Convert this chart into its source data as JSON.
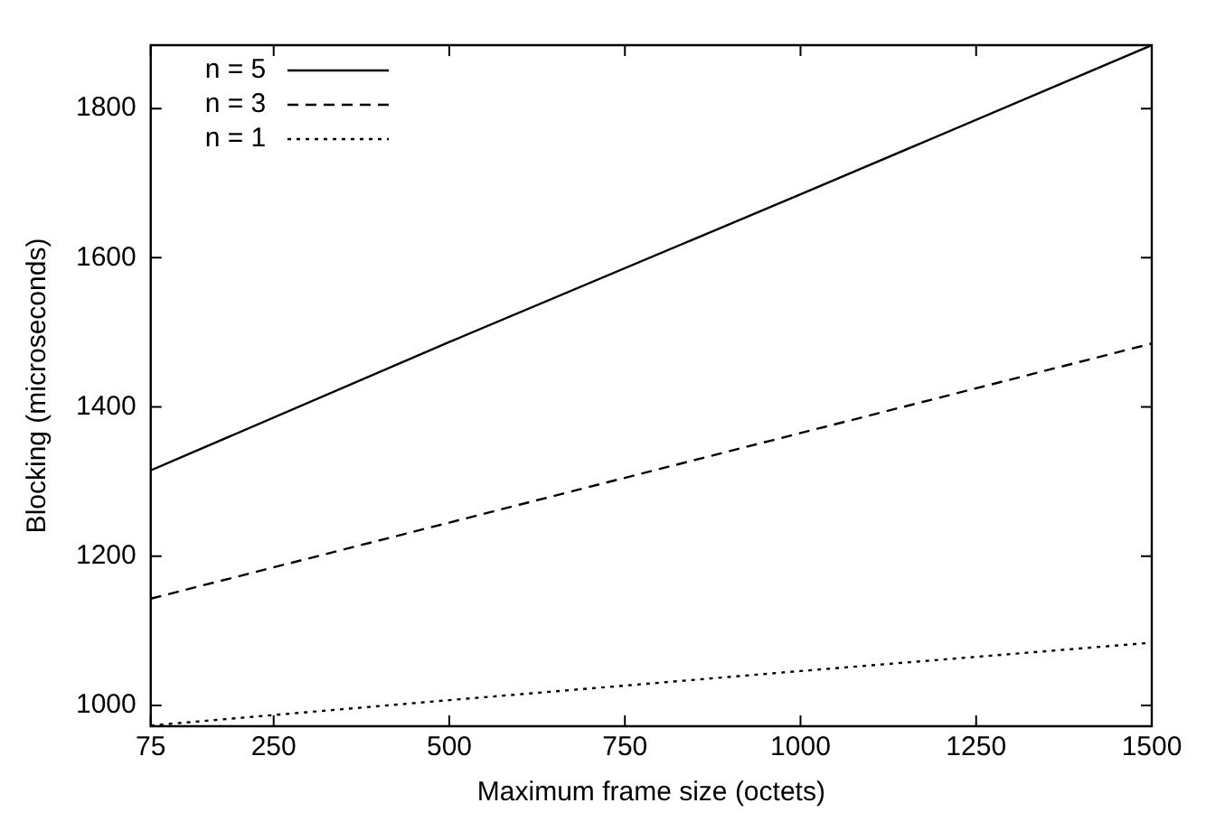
{
  "chart_data": {
    "type": "line",
    "xlabel": "Maximum frame size (octets)",
    "ylabel": "Blocking (microseconds)",
    "x": [
      75,
      500,
      1000,
      1500
    ],
    "series": [
      {
        "name": "n = 5",
        "color": "#000000",
        "line_style": "solid",
        "values": [
          1315,
          1487,
          1685,
          1885
        ]
      },
      {
        "name": "n = 3",
        "color": "#000000",
        "line_style": "dashed",
        "values": [
          1143,
          1245,
          1365,
          1485
        ]
      },
      {
        "name": "n = 1",
        "color": "#000000",
        "line_style": "dotted",
        "values": [
          973,
          1007,
          1046,
          1084
        ]
      }
    ],
    "xlim": [
      75,
      1500
    ],
    "xticks": [
      75,
      250,
      500,
      750,
      1000,
      1250,
      1500
    ],
    "ylim": [
      972,
      1885
    ],
    "yticks": [
      1000,
      1200,
      1400,
      1600,
      1800
    ],
    "grid": false,
    "legend": "top left",
    "marker": "none"
  }
}
